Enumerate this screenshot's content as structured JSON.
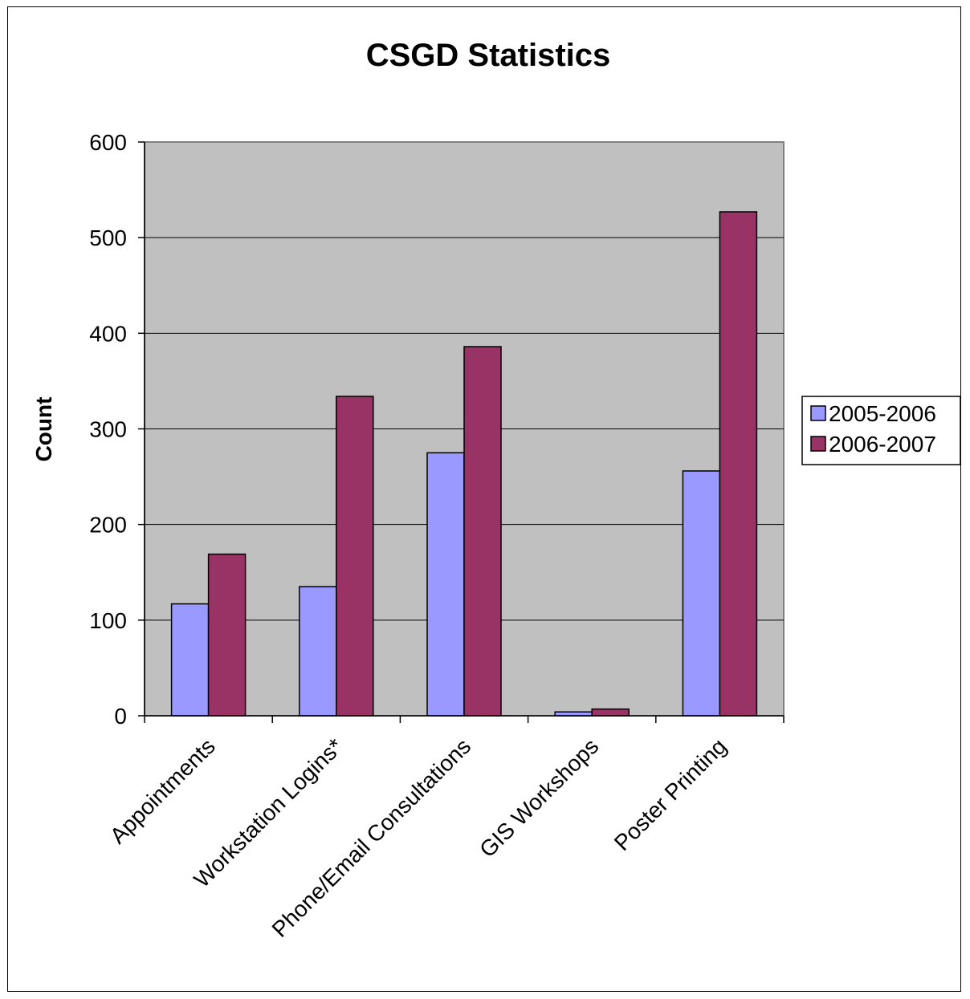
{
  "chart_data": {
    "type": "bar",
    "title": "CSGD Statistics",
    "xlabel": "",
    "ylabel": "Count",
    "categories": [
      "Appointments",
      "Workstation Logins*",
      "Phone/Email Consultations",
      "GIS Workshops",
      "Poster Printing"
    ],
    "series": [
      {
        "name": "2005-2006",
        "color": "#9999ff",
        "values": [
          117,
          135,
          275,
          4,
          256
        ]
      },
      {
        "name": "2006-2007",
        "color": "#993366",
        "values": [
          169,
          334,
          386,
          7,
          527
        ]
      }
    ],
    "ylim": [
      0,
      600
    ],
    "yticks": [
      "0",
      "100",
      "200",
      "300",
      "400",
      "500",
      "600"
    ],
    "plot_background": "#c0c0c0",
    "grid": true,
    "legend_position": "right"
  }
}
